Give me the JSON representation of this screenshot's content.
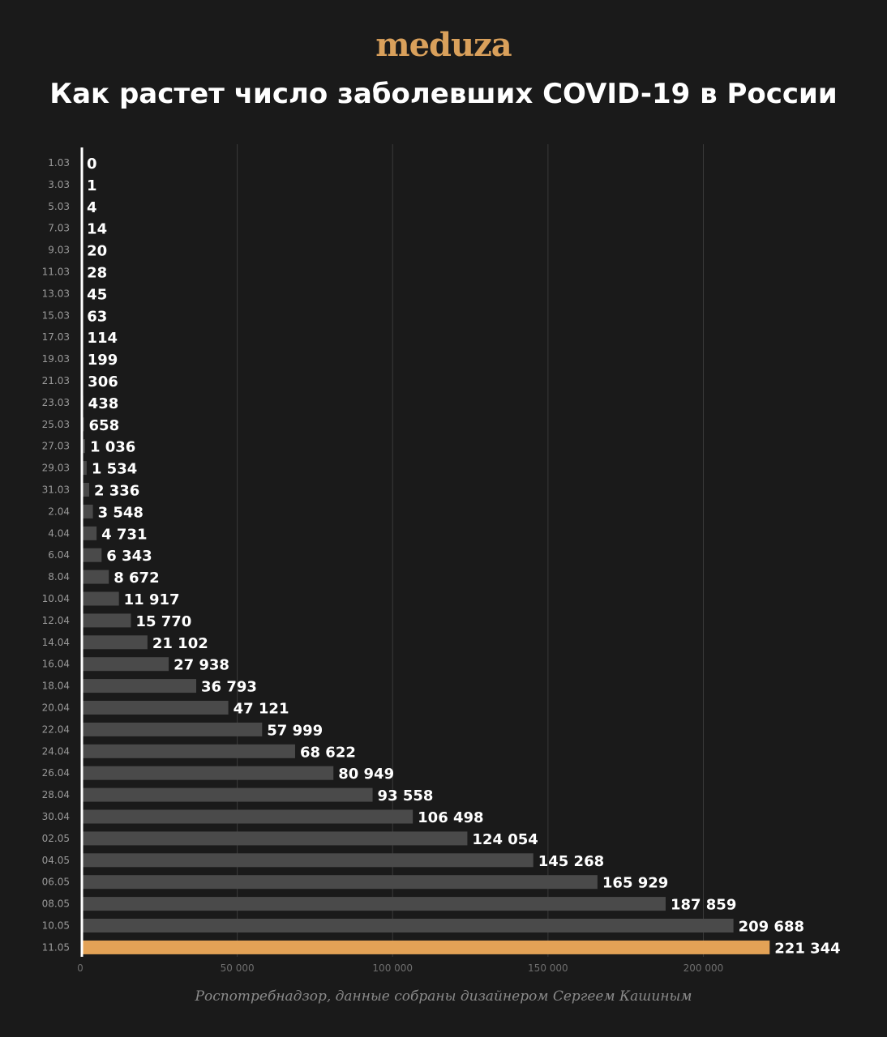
{
  "header": {
    "logo": "meduza",
    "title": "Как растет число заболевших COVID-19 в России"
  },
  "footer": {
    "source": "Роспотребнадзор, данные собраны дизайнером Сергеем Кашиным"
  },
  "colors": {
    "background": "#1a1a1a",
    "bar": "#4a4a4a",
    "highlight": "#e3a256",
    "grid": "#3a3a3a",
    "axis": "#ffffff",
    "text": "#ffffff",
    "muted": "#9a9a9a"
  },
  "chart_data": {
    "type": "bar",
    "orientation": "horizontal",
    "title": "Как растет число заболевших COVID-19 в России",
    "categories": [
      "1.03",
      "3.03",
      "5.03",
      "7.03",
      "9.03",
      "11.03",
      "13.03",
      "15.03",
      "17.03",
      "19.03",
      "21.03",
      "23.03",
      "25.03",
      "27.03",
      "29.03",
      "31.03",
      "2.04",
      "4.04",
      "6.04",
      "8.04",
      "10.04",
      "12.04",
      "14.04",
      "16.04",
      "18.04",
      "20.04",
      "22.04",
      "24.04",
      "26.04",
      "28.04",
      "30.04",
      "02.05",
      "04.05",
      "06.05",
      "08.05",
      "10.05",
      "11.05"
    ],
    "values": [
      0,
      1,
      4,
      14,
      20,
      28,
      45,
      63,
      114,
      199,
      306,
      438,
      658,
      1036,
      1534,
      2336,
      3548,
      4731,
      6343,
      8672,
      11917,
      15770,
      21102,
      27938,
      36793,
      47121,
      57999,
      68622,
      80949,
      93558,
      106498,
      124054,
      145268,
      165929,
      187859,
      209688,
      221344
    ],
    "value_labels": [
      "0",
      "1",
      "4",
      "14",
      "20",
      "28",
      "45",
      "63",
      "114",
      "199",
      "306",
      "438",
      "658",
      "1 036",
      "1 534",
      "2 336",
      "3 548",
      "4 731",
      "6 343",
      "8 672",
      "11 917",
      "15 770",
      "21 102",
      "27 938",
      "36 793",
      "47 121",
      "57 999",
      "68 622",
      "80 949",
      "93 558",
      "106 498",
      "124 054",
      "145 268",
      "165 929",
      "187 859",
      "209 688",
      "221 344"
    ],
    "highlight_category": "11.05",
    "xlim": [
      0,
      220000
    ],
    "xticks": [
      0,
      50000,
      100000,
      150000,
      200000
    ],
    "xtick_labels": [
      "0",
      "50 000",
      "100 000",
      "150 000",
      "200 000"
    ],
    "grid": true,
    "xlabel": "",
    "ylabel": ""
  }
}
